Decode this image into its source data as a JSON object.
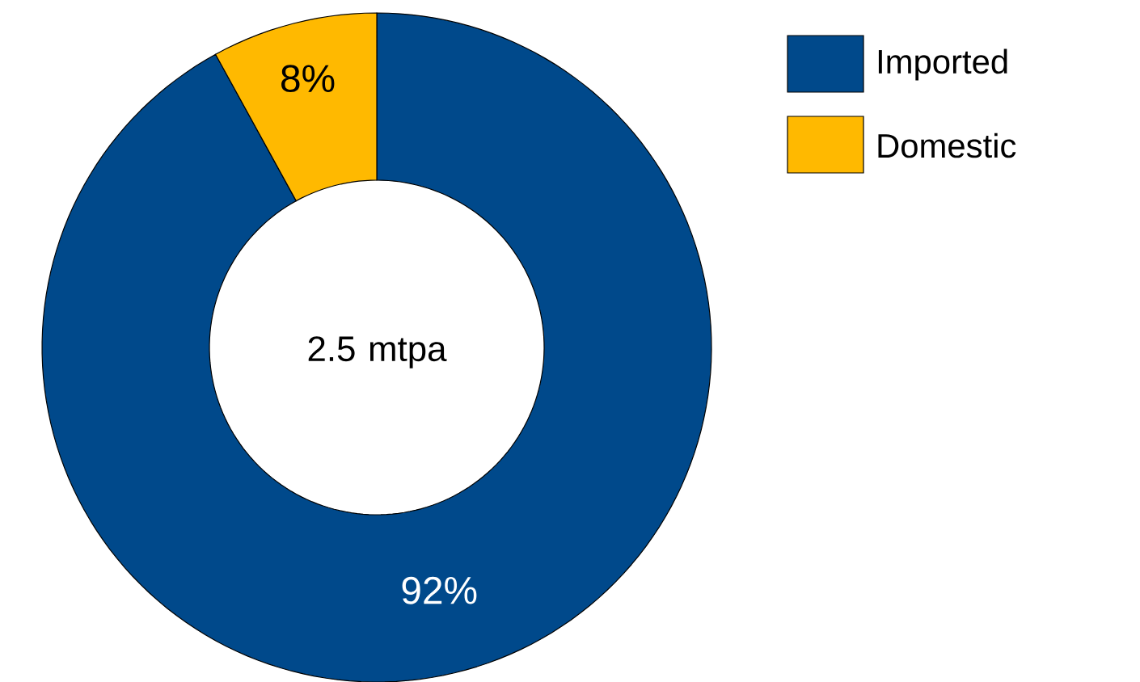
{
  "chart_data": {
    "type": "donut",
    "categories": [
      "Imported",
      "Domestic"
    ],
    "values": [
      92,
      8
    ],
    "colors": [
      "#00498B",
      "#FFB900"
    ],
    "value_labels": [
      "92%",
      "8%"
    ],
    "annotations": [
      "2.5 mtpa"
    ],
    "legend": "top right"
  }
}
